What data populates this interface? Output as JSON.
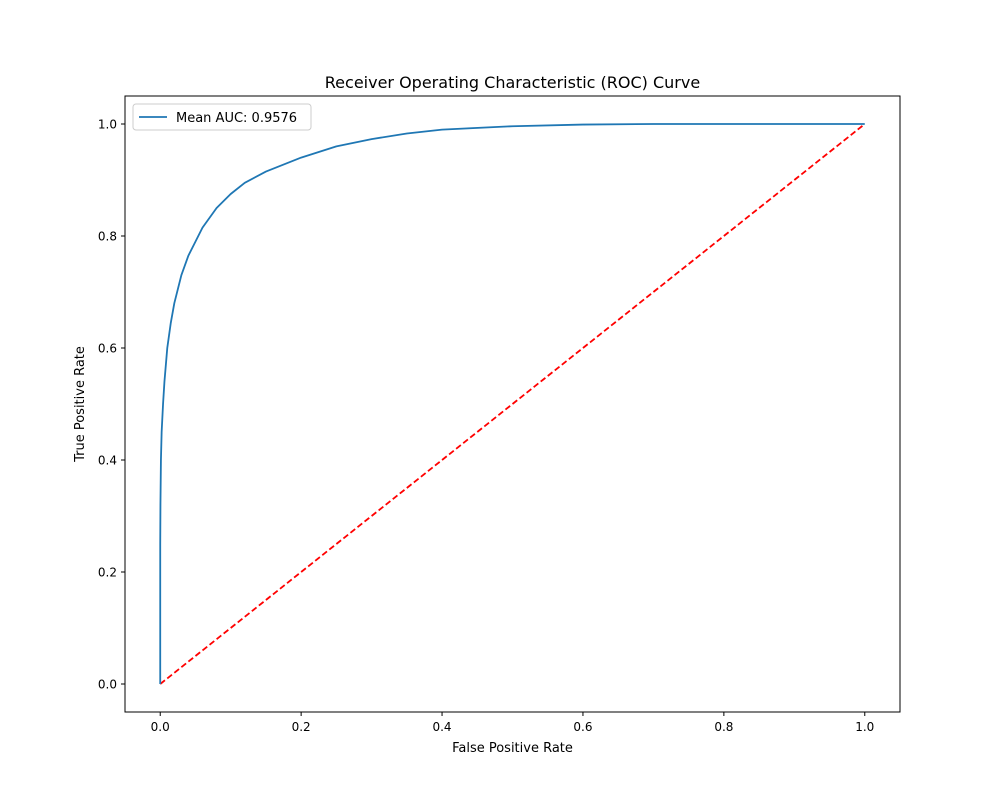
{
  "chart_data": {
    "type": "line",
    "title": "Receiver Operating Characteristic (ROC) Curve",
    "xlabel": "False Positive Rate",
    "ylabel": "True Positive Rate",
    "xlim": [
      -0.05,
      1.05
    ],
    "ylim": [
      -0.05,
      1.05
    ],
    "xticks": [
      0.0,
      0.2,
      0.4,
      0.6,
      0.8,
      1.0
    ],
    "yticks": [
      0.0,
      0.2,
      0.4,
      0.6,
      0.8,
      1.0
    ],
    "xtick_labels": [
      "0.0",
      "0.2",
      "0.4",
      "0.6",
      "0.8",
      "1.0"
    ],
    "ytick_labels": [
      "0.0",
      "0.2",
      "0.4",
      "0.6",
      "0.8",
      "1.0"
    ],
    "grid": false,
    "legend_position": "upper left",
    "series": [
      {
        "name": "Mean AUC: 0.9576",
        "color": "#1f77b4",
        "style": "solid",
        "x": [
          0.0,
          0.0,
          0.0003,
          0.001,
          0.002,
          0.004,
          0.006,
          0.01,
          0.015,
          0.02,
          0.03,
          0.04,
          0.05,
          0.06,
          0.08,
          0.1,
          0.12,
          0.15,
          0.2,
          0.25,
          0.3,
          0.35,
          0.4,
          0.5,
          0.6,
          0.7,
          0.8,
          0.9,
          1.0
        ],
        "y": [
          0.0,
          0.25,
          0.32,
          0.4,
          0.45,
          0.5,
          0.54,
          0.6,
          0.645,
          0.68,
          0.73,
          0.765,
          0.79,
          0.815,
          0.85,
          0.875,
          0.895,
          0.915,
          0.94,
          0.96,
          0.973,
          0.983,
          0.99,
          0.996,
          0.999,
          1.0,
          1.0,
          1.0,
          1.0
        ]
      },
      {
        "color": "#ff0000",
        "style": "dashed",
        "x": [
          0.0,
          1.0
        ],
        "y": [
          0.0,
          1.0
        ]
      }
    ]
  }
}
